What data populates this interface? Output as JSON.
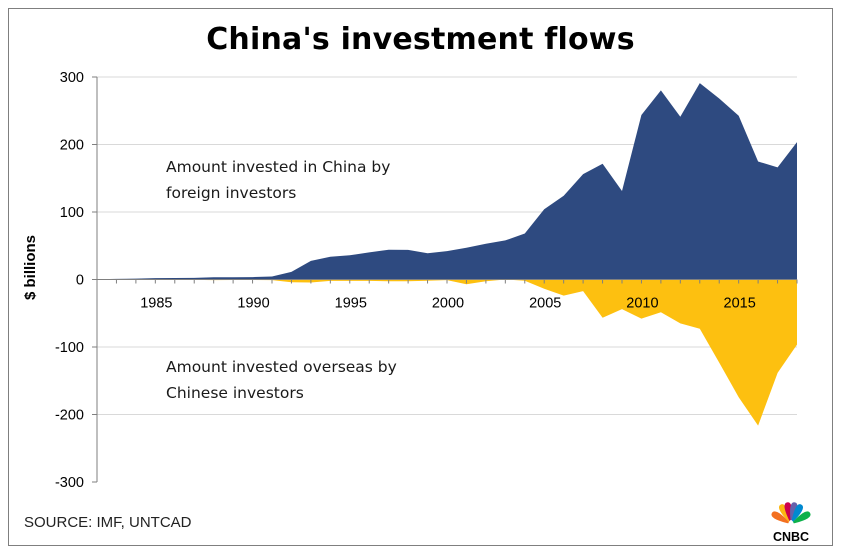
{
  "chart_data": {
    "type": "area",
    "title": "China's investment flows",
    "ylabel": "$ billions",
    "xlabel": "",
    "ylim": [
      -300,
      300
    ],
    "xlim": [
      1982,
      2018
    ],
    "y_ticks": [
      300,
      200,
      100,
      0,
      -100,
      -200,
      -300
    ],
    "x_ticks": [
      1985,
      1990,
      1995,
      2000,
      2005,
      2010,
      2015
    ],
    "grid": true,
    "x": [
      1982,
      1983,
      1984,
      1985,
      1986,
      1987,
      1988,
      1989,
      1990,
      1991,
      1992,
      1993,
      1994,
      1995,
      1996,
      1997,
      1998,
      1999,
      2000,
      2001,
      2002,
      2003,
      2004,
      2005,
      2006,
      2007,
      2008,
      2009,
      2010,
      2011,
      2012,
      2013,
      2014,
      2015,
      2016,
      2017,
      2018
    ],
    "series": [
      {
        "name": "Amount invested in China by foreign investors",
        "color": "#2e4a80",
        "values": [
          0.4,
          0.9,
          1.3,
          2.0,
          2.2,
          2.3,
          3.2,
          3.4,
          3.5,
          4.4,
          11.2,
          27.5,
          33.8,
          35.8,
          40.2,
          44.2,
          43.8,
          38.8,
          42.1,
          47.1,
          53.1,
          57.9,
          68.1,
          104.1,
          124.1,
          156.2,
          171.5,
          131.1,
          243.7,
          280.1,
          241.2,
          290.9,
          268.1,
          242.5,
          174.8,
          166.1,
          203.5
        ]
      },
      {
        "name": "Amount invested overseas by Chinese investors",
        "color": "#fdc010",
        "values": [
          0,
          0,
          -0.1,
          -0.6,
          -0.5,
          -0.6,
          -0.9,
          -0.8,
          -0.8,
          -0.9,
          -4.0,
          -4.4,
          -2.0,
          -2.0,
          -2.1,
          -2.6,
          -2.6,
          -1.8,
          -0.9,
          -6.9,
          -2.5,
          0,
          -1.8,
          -13.7,
          -23.9,
          -17.2,
          -56.7,
          -43.9,
          -58.0,
          -48.4,
          -65.0,
          -73.0,
          -123.1,
          -174.4,
          -216.4,
          -138.3,
          -96.5
        ]
      }
    ],
    "annotations": [
      {
        "lines": [
          "Amount invested in China by",
          "foreign investors"
        ]
      },
      {
        "lines": [
          "Amount invested overseas by",
          "Chinese investors"
        ]
      }
    ]
  },
  "source": "SOURCE: IMF, UNTCAD",
  "logo": {
    "text": "CNBC",
    "icon": "nbc-peacock-icon",
    "colors": [
      "#f37021",
      "#fcb711",
      "#cc004c",
      "#6460aa",
      "#0089d0",
      "#0db14b"
    ]
  }
}
